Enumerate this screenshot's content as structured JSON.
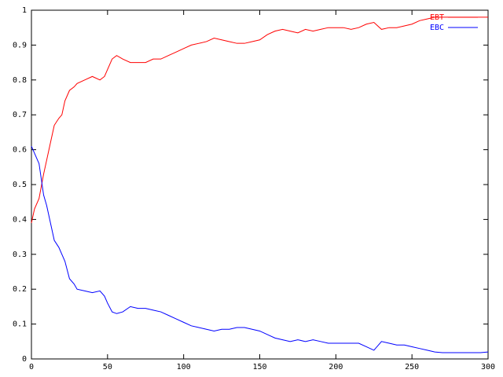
{
  "chart_data": {
    "type": "line",
    "x": [
      0,
      2,
      5,
      8,
      10,
      13,
      15,
      18,
      20,
      22,
      25,
      28,
      30,
      35,
      40,
      45,
      48,
      50,
      53,
      56,
      60,
      65,
      70,
      75,
      80,
      85,
      90,
      95,
      100,
      105,
      110,
      115,
      120,
      125,
      130,
      135,
      140,
      145,
      150,
      155,
      160,
      165,
      170,
      175,
      180,
      185,
      190,
      195,
      200,
      205,
      210,
      215,
      220,
      225,
      230,
      235,
      240,
      245,
      250,
      255,
      260,
      265,
      270,
      275,
      280,
      285,
      290,
      295,
      300
    ],
    "series": [
      {
        "name": "EBT",
        "color": "#ff0000",
        "values": [
          0.39,
          0.43,
          0.46,
          0.53,
          0.57,
          0.63,
          0.67,
          0.69,
          0.7,
          0.74,
          0.77,
          0.78,
          0.79,
          0.8,
          0.81,
          0.8,
          0.81,
          0.83,
          0.86,
          0.87,
          0.86,
          0.85,
          0.85,
          0.85,
          0.86,
          0.86,
          0.87,
          0.88,
          0.89,
          0.9,
          0.905,
          0.91,
          0.92,
          0.915,
          0.91,
          0.905,
          0.905,
          0.91,
          0.915,
          0.93,
          0.94,
          0.945,
          0.94,
          0.935,
          0.945,
          0.94,
          0.945,
          0.95,
          0.95,
          0.95,
          0.945,
          0.95,
          0.96,
          0.965,
          0.945,
          0.95,
          0.95,
          0.955,
          0.96,
          0.97,
          0.975,
          0.98,
          0.98,
          0.98,
          0.98,
          0.98,
          0.98,
          0.98,
          0.98
        ]
      },
      {
        "name": "EBC",
        "color": "#0000ff",
        "values": [
          0.61,
          0.59,
          0.56,
          0.47,
          0.44,
          0.38,
          0.34,
          0.32,
          0.3,
          0.28,
          0.23,
          0.215,
          0.2,
          0.195,
          0.19,
          0.195,
          0.18,
          0.16,
          0.135,
          0.13,
          0.135,
          0.15,
          0.145,
          0.145,
          0.14,
          0.135,
          0.125,
          0.115,
          0.105,
          0.095,
          0.09,
          0.085,
          0.08,
          0.085,
          0.085,
          0.09,
          0.09,
          0.085,
          0.08,
          0.07,
          0.06,
          0.055,
          0.05,
          0.055,
          0.05,
          0.055,
          0.05,
          0.045,
          0.045,
          0.045,
          0.045,
          0.045,
          0.035,
          0.025,
          0.05,
          0.045,
          0.04,
          0.04,
          0.035,
          0.03,
          0.025,
          0.02,
          0.018,
          0.018,
          0.018,
          0.018,
          0.018,
          0.018,
          0.02
        ]
      }
    ],
    "xlim": [
      0,
      300
    ],
    "ylim": [
      0,
      1
    ],
    "xticks": [
      0,
      50,
      100,
      150,
      200,
      250,
      300
    ],
    "yticks": [
      0,
      0.1,
      0.2,
      0.3,
      0.4,
      0.5,
      0.6,
      0.7,
      0.8,
      0.9,
      1
    ],
    "legend": "top-right"
  }
}
